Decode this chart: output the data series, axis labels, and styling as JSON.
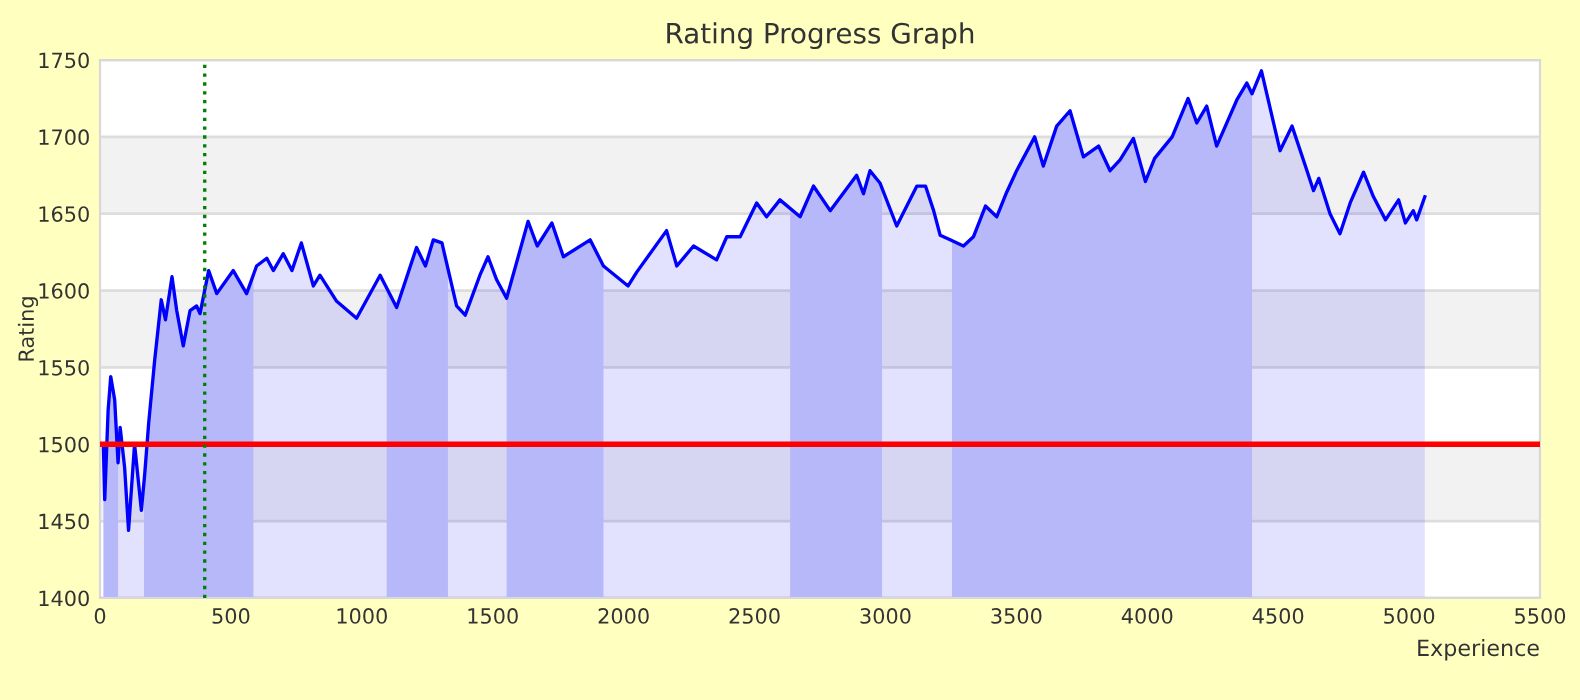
{
  "chart_data": {
    "type": "area",
    "title": "Rating Progress Graph",
    "xlabel": "Experience",
    "ylabel": "Rating",
    "series": [
      {
        "color": "#0000ff",
        "x": [
          13,
          18,
          31,
          41,
          56,
          69,
          77,
          94,
          109,
          132,
          158,
          171,
          186,
          209,
          234,
          250,
          275,
          293,
          318,
          344,
          369,
          382,
          415,
          446,
          509,
          560,
          598,
          637,
          662,
          700,
          733,
          769,
          815,
          840,
          904,
          980,
          1070,
          1133,
          1209,
          1243,
          1273,
          1306,
          1362,
          1395,
          1451,
          1482,
          1515,
          1553,
          1635,
          1670,
          1726,
          1770,
          1872,
          1923,
          2017,
          2050,
          2164,
          2203,
          2267,
          2355,
          2394,
          2445,
          2508,
          2546,
          2597,
          2674,
          2725,
          2789,
          2890,
          2916,
          2941,
          2979,
          3043,
          3120,
          3153,
          3184,
          3209,
          3247,
          3298,
          3336,
          3382,
          3425,
          3463,
          3501,
          3570,
          3603,
          3654,
          3705,
          3756,
          3814,
          3858,
          3896,
          3947,
          3993,
          4028,
          4095,
          4156,
          4189,
          4227,
          4265,
          4342,
          4380,
          4400,
          4436,
          4507,
          4553,
          4604,
          4635,
          4655,
          4698,
          4736,
          4775,
          4826,
          4864,
          4910,
          4960,
          4986,
          5016,
          5029,
          5060
        ],
        "values": [
          1498,
          1464,
          1522,
          1544,
          1529,
          1488,
          1511,
          1485,
          1444,
          1500,
          1457,
          1481,
          1514,
          1555,
          1594,
          1581,
          1609,
          1587,
          1564,
          1587,
          1590,
          1585,
          1613,
          1598,
          1613,
          1598,
          1616,
          1621,
          1613,
          1624,
          1613,
          1631,
          1603,
          1610,
          1593,
          1582,
          1610,
          1589,
          1628,
          1616,
          1633,
          1631,
          1590,
          1584,
          1610,
          1622,
          1607,
          1595,
          1645,
          1629,
          1644,
          1622,
          1633,
          1616,
          1603,
          1612,
          1639,
          1616,
          1629,
          1620,
          1635,
          1635,
          1657,
          1648,
          1659,
          1648,
          1668,
          1652,
          1675,
          1663,
          1678,
          1670,
          1642,
          1668,
          1668,
          1652,
          1636,
          1633,
          1629,
          1635,
          1655,
          1648,
          1664,
          1678,
          1700,
          1681,
          1707,
          1717,
          1687,
          1694,
          1678,
          1685,
          1699,
          1671,
          1686,
          1700,
          1725,
          1709,
          1720,
          1694,
          1724,
          1735,
          1728,
          1743,
          1691,
          1707,
          1681,
          1665,
          1673,
          1650,
          1637,
          1657,
          1677,
          1661,
          1646,
          1659,
          1644,
          1652,
          1646,
          1661
        ]
      }
    ],
    "xlim": [
      0,
      5500
    ],
    "ylim": [
      1400,
      1750
    ],
    "xticks": [
      0,
      500,
      1000,
      1500,
      2000,
      2500,
      3000,
      3500,
      4000,
      4500,
      5000,
      5500
    ],
    "yticks": [
      1400,
      1450,
      1500,
      1550,
      1600,
      1650,
      1700,
      1750
    ],
    "grid": "y",
    "legend": false,
    "ref_lines": [
      {
        "axis": "y",
        "value": 1500,
        "color": "#ff0000",
        "line_style": "solid"
      },
      {
        "axis": "x",
        "value": 400,
        "color": "#008000",
        "line_style": "dotted"
      }
    ],
    "bands": [
      {
        "axis": "x",
        "from": 0,
        "to": 69,
        "color": "#cfd0fa"
      },
      {
        "axis": "x",
        "from": 168,
        "to": 586,
        "color": "#cfd0fa"
      },
      {
        "axis": "x",
        "from": 1095,
        "to": 1329,
        "color": "#cfd0fa"
      },
      {
        "axis": "x",
        "from": 1553,
        "to": 1923,
        "color": "#cfd0fa"
      },
      {
        "axis": "x",
        "from": 2636,
        "to": 2987,
        "color": "#cfd0fa"
      },
      {
        "axis": "x",
        "from": 3254,
        "to": 4400,
        "color": "#cfd0fa"
      }
    ]
  }
}
